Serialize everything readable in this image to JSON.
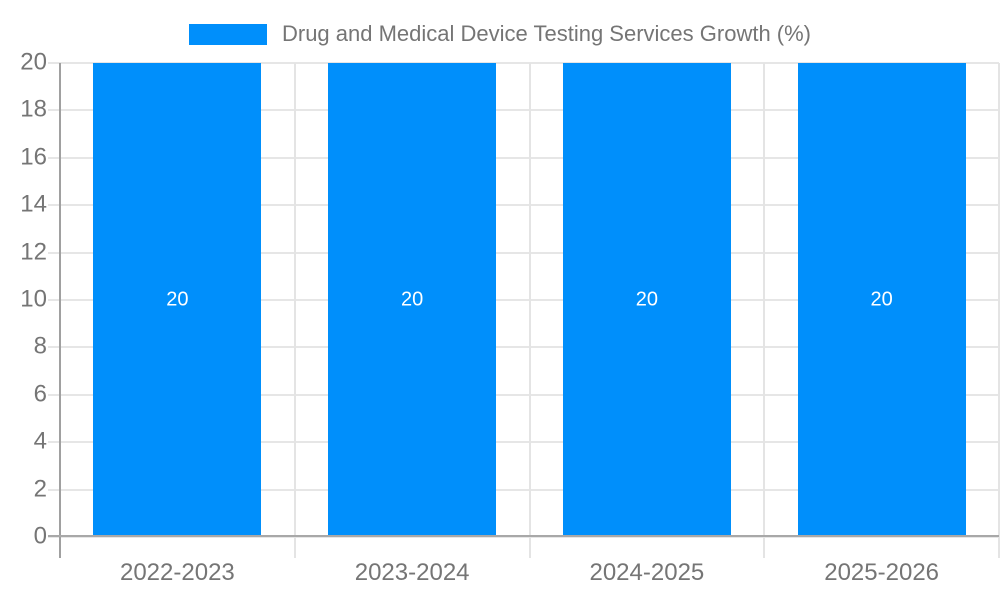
{
  "chart_data": {
    "type": "bar",
    "title": "Drug and Medical Device Testing Services Growth (%)",
    "categories": [
      "2022-2023",
      "2023-2024",
      "2024-2025",
      "2025-2026"
    ],
    "values": [
      20,
      20,
      20,
      20
    ],
    "series": [
      {
        "name": "Drug and Medical Device Testing Services Growth (%)",
        "values": [
          20,
          20,
          20,
          20
        ]
      }
    ],
    "data_labels": [
      "20",
      "20",
      "20",
      "20"
    ],
    "xlabel": "",
    "ylabel": "",
    "ylim": [
      0,
      20
    ],
    "yticks": [
      0,
      2,
      4,
      6,
      8,
      10,
      12,
      14,
      16,
      18,
      20
    ],
    "grid": true,
    "legend_position": "top",
    "colors": {
      "bar": "#008FFB",
      "data_label_text": "#FFFFFF",
      "tick_text": "#757575",
      "legend_text": "#757575",
      "gridline": "#E6E6E6",
      "axis_line": "#A8A8A8",
      "background": "#FFFFFF"
    }
  }
}
